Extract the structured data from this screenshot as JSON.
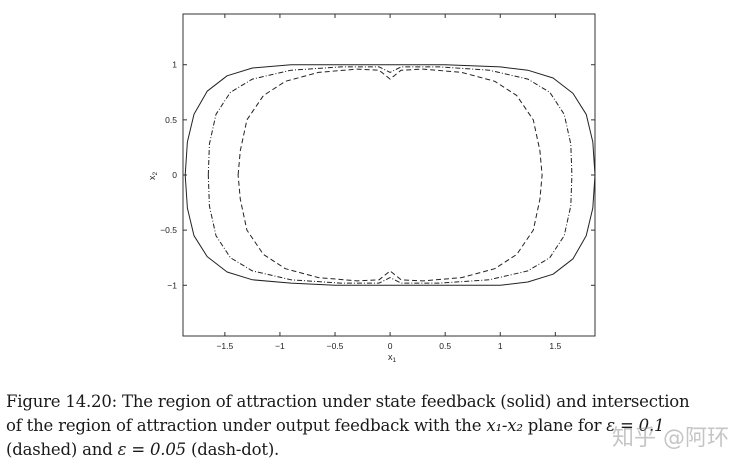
{
  "chart_data": {
    "type": "line",
    "title": "",
    "xlabel": "x1",
    "ylabel": "x2",
    "xlim": [
      -1.88,
      1.86
    ],
    "ylim": [
      -1.46,
      1.46
    ],
    "grid": false,
    "legend": null,
    "x_ticks": [
      -1.5,
      -1,
      -0.5,
      0,
      0.5,
      1,
      1.5
    ],
    "x_tick_labels": [
      "-1.5",
      "-1",
      "-0.5",
      "0",
      "0.5",
      "1",
      "1.5"
    ],
    "y_ticks": [
      1,
      0.5,
      0,
      -0.5,
      -1
    ],
    "y_tick_labels": [
      "1",
      "0.5",
      "0",
      "-0.5",
      "-1"
    ],
    "series": [
      {
        "name": "state feedback (solid)",
        "style": "solid",
        "x": [
          -1.86,
          -1.84,
          -1.78,
          -1.66,
          -1.48,
          -1.25,
          -0.9,
          -0.5,
          0,
          0.5,
          1.0,
          1.25,
          1.48,
          1.66,
          1.78,
          1.84,
          1.86,
          1.84,
          1.78,
          1.66,
          1.48,
          1.25,
          1.0,
          0.5,
          0,
          -0.5,
          -0.9,
          -1.25,
          -1.48,
          -1.66,
          -1.78,
          -1.84,
          -1.86
        ],
        "y": [
          0,
          0.3,
          0.55,
          0.76,
          0.9,
          0.97,
          1.0,
          1.0,
          1.0,
          1.0,
          0.98,
          0.95,
          0.88,
          0.74,
          0.55,
          0.3,
          0,
          -0.3,
          -0.55,
          -0.76,
          -0.9,
          -0.97,
          -1.0,
          -1.0,
          -1.0,
          -1.0,
          -0.98,
          -0.95,
          -0.88,
          -0.74,
          -0.55,
          -0.3,
          0
        ]
      },
      {
        "name": "output feedback, epsilon = 0.1 (dashed)",
        "style": "dashed",
        "x": [
          -1.38,
          -1.36,
          -1.3,
          -1.15,
          -0.95,
          -0.65,
          -0.3,
          -0.1,
          0,
          0.1,
          0.3,
          0.65,
          0.95,
          1.15,
          1.3,
          1.36,
          1.38,
          1.36,
          1.3,
          1.15,
          0.95,
          0.65,
          0.3,
          0.1,
          0,
          -0.1,
          -0.3,
          -0.65,
          -0.95,
          -1.15,
          -1.3,
          -1.36,
          -1.38
        ],
        "y": [
          0,
          0.22,
          0.5,
          0.72,
          0.85,
          0.93,
          0.96,
          0.95,
          0.87,
          0.95,
          0.96,
          0.93,
          0.85,
          0.72,
          0.5,
          0.22,
          0,
          -0.22,
          -0.5,
          -0.72,
          -0.85,
          -0.93,
          -0.96,
          -0.95,
          -0.87,
          -0.95,
          -0.96,
          -0.93,
          -0.85,
          -0.72,
          -0.5,
          -0.22,
          0
        ]
      },
      {
        "name": "output feedback, epsilon = 0.05 (dash-dot)",
        "style": "dash-dot",
        "x": [
          -1.65,
          -1.64,
          -1.58,
          -1.45,
          -1.25,
          -0.9,
          -0.45,
          -0.1,
          0,
          0.1,
          0.45,
          0.9,
          1.25,
          1.45,
          1.58,
          1.64,
          1.65,
          1.64,
          1.58,
          1.45,
          1.25,
          0.9,
          0.45,
          0.1,
          0,
          -0.1,
          -0.45,
          -0.9,
          -1.25,
          -1.45,
          -1.58,
          -1.64,
          -1.65
        ],
        "y": [
          0,
          0.28,
          0.55,
          0.75,
          0.87,
          0.95,
          0.98,
          0.98,
          0.93,
          0.98,
          0.98,
          0.95,
          0.87,
          0.75,
          0.55,
          0.28,
          0,
          -0.28,
          -0.55,
          -0.75,
          -0.87,
          -0.95,
          -0.98,
          -0.98,
          -0.93,
          -0.98,
          -0.98,
          -0.95,
          -0.87,
          -0.75,
          -0.55,
          -0.28,
          0
        ]
      }
    ],
    "caption": "Figure 14.20: The region of attraction under state feedback (solid) and intersection of the region of attraction under output feedback with the x1-x2 plane for ε = 0.1 (dashed) and ε = 0.05 (dash-dot)."
  },
  "caption": {
    "line1": "Figure 14.20:  The region of attraction under state feedback (solid) and intersection",
    "line2_a": "of the region of attraction under output feedback with the ",
    "line2_math": "x₁-x₂",
    "line2_b": " plane for ",
    "line2_eps": "ε = 0.1",
    "line3_a": "(dashed) and ",
    "line3_eps": "ε = 0.05",
    "line3_b": " (dash-dot)."
  },
  "watermark": "知乎 @阿环"
}
